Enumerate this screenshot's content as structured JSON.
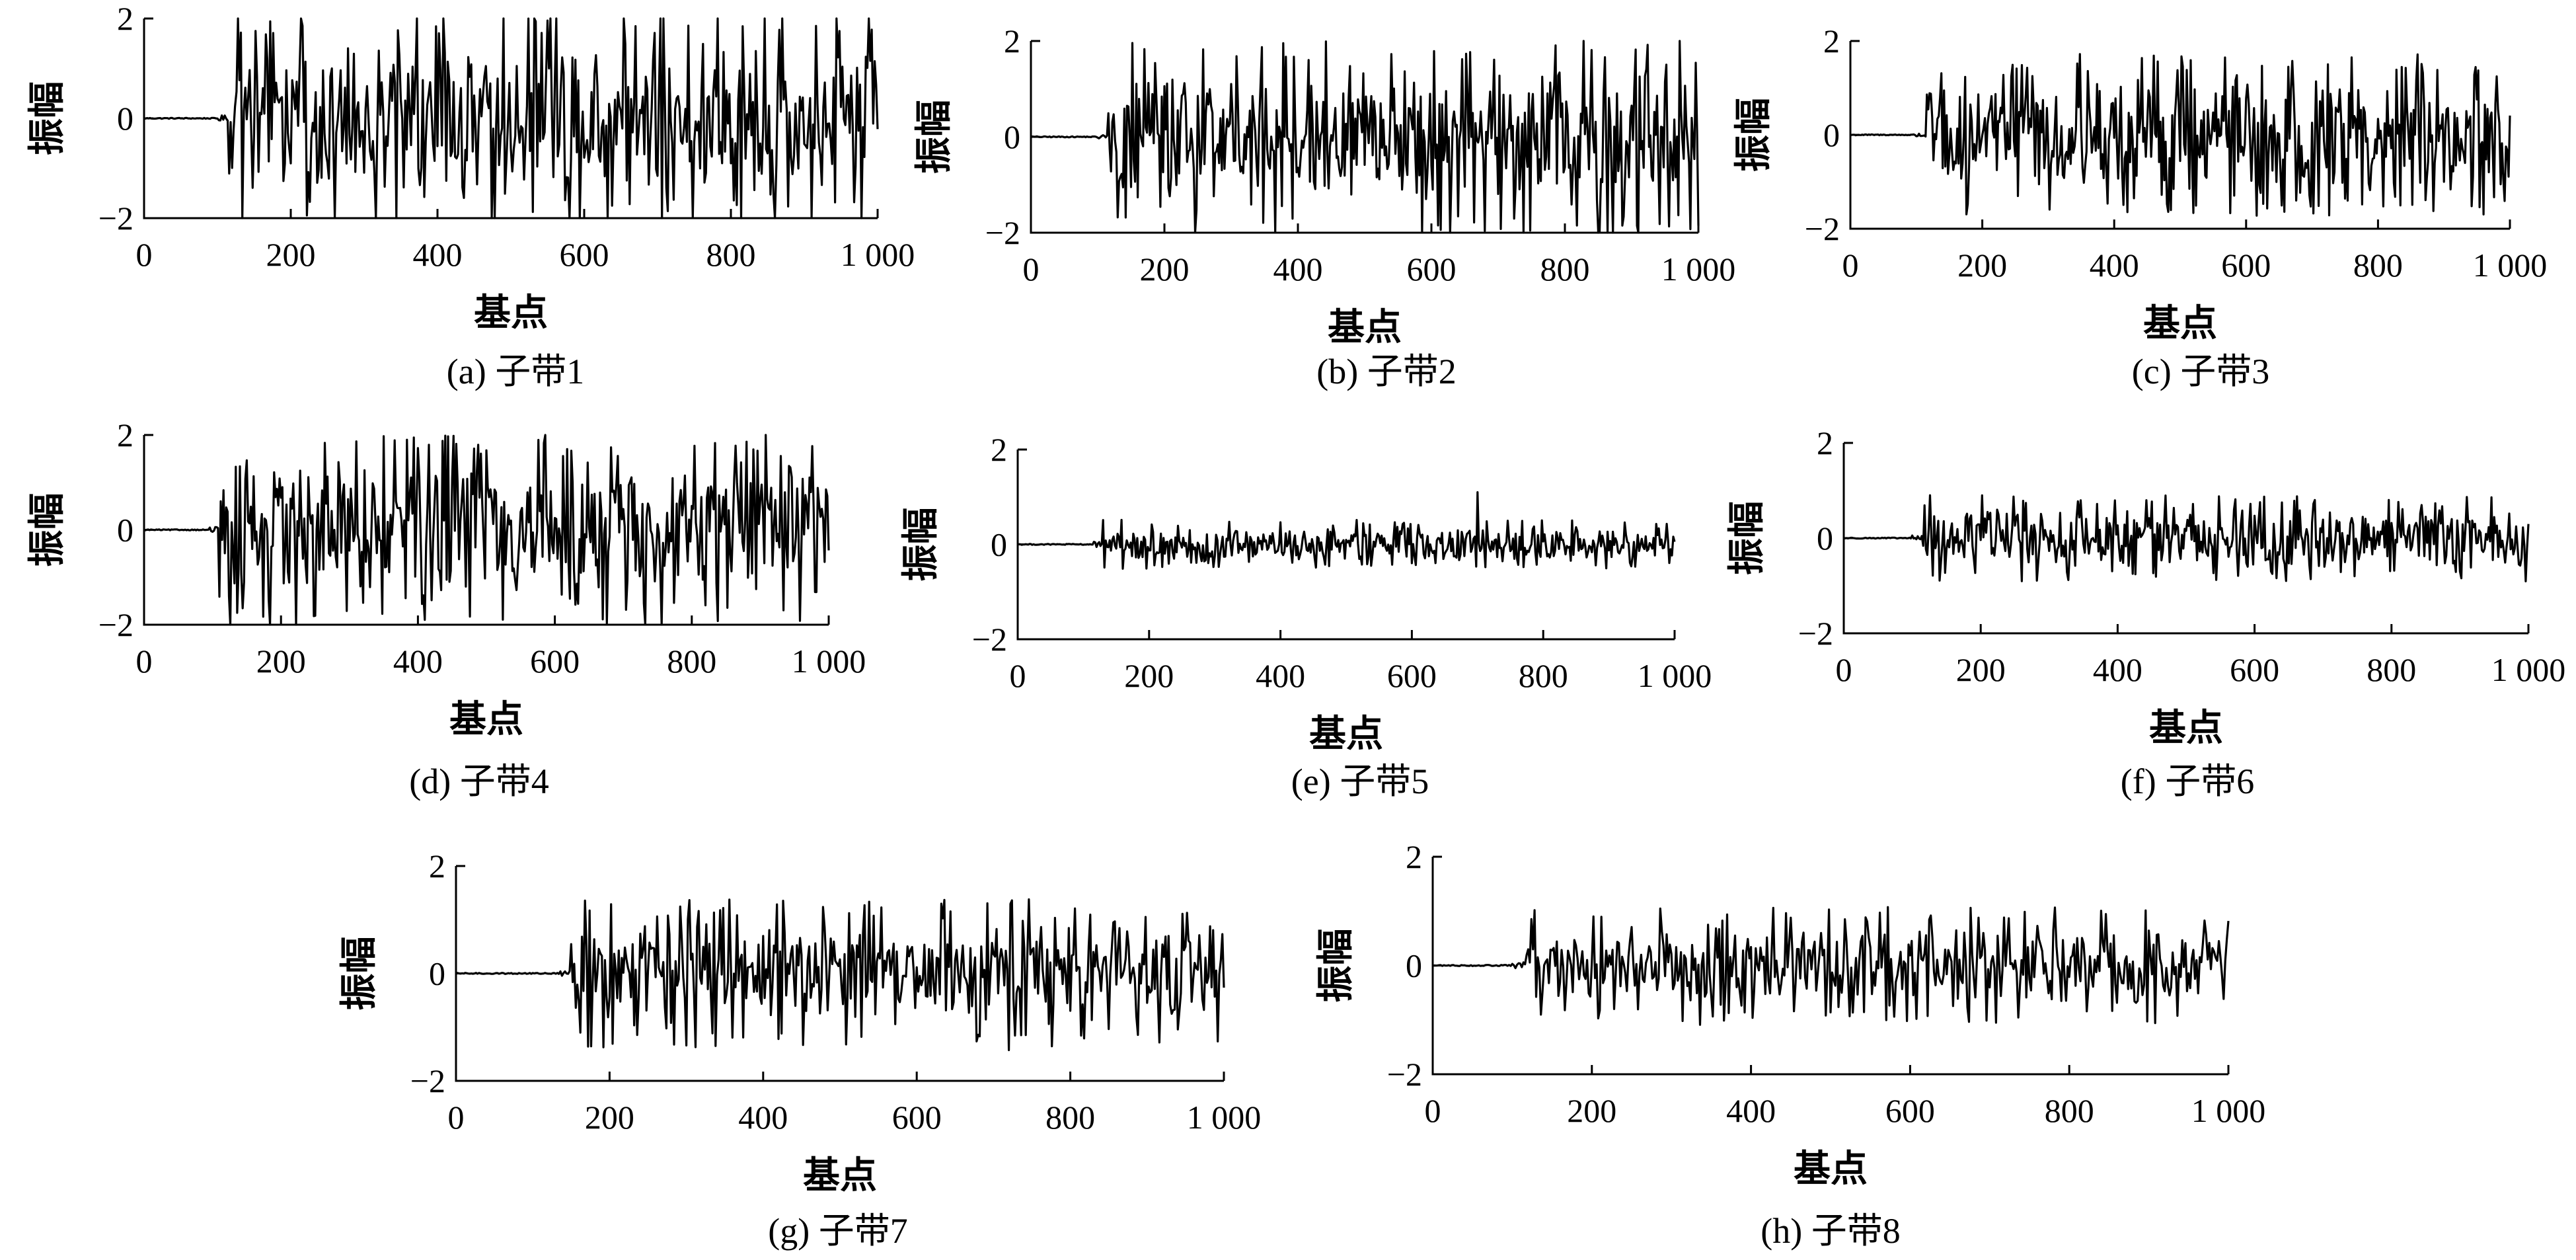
{
  "chart_data": [
    {
      "type": "line",
      "ylabel": "振幅",
      "xlabel": "基点",
      "caption": "(a) 子带1",
      "xlim": [
        0,
        1000
      ],
      "ylim": [
        -2,
        2
      ],
      "xticks": [
        "0",
        "200",
        "400",
        "600",
        "800",
        "1 000"
      ],
      "yticks": [
        "2",
        "0",
        "−2"
      ],
      "series": [
        {
          "x_start": 0,
          "x_end": 1000,
          "onset": 115,
          "amplitude": 2.0,
          "clipped": true,
          "shape": "noise"
        }
      ]
    },
    {
      "type": "line",
      "ylabel": "振幅",
      "xlabel": "基点",
      "caption": "(b) 子带2",
      "xlim": [
        0,
        1000
      ],
      "ylim": [
        -2,
        2
      ],
      "xticks": [
        "0",
        "200",
        "400",
        "600",
        "800",
        "1 000"
      ],
      "yticks": [
        "2",
        "0",
        "−2"
      ],
      "series": [
        {
          "x_start": 0,
          "x_end": 1000,
          "onset": 115,
          "amplitude": 1.8,
          "clipped": true,
          "shape": "noise"
        }
      ]
    },
    {
      "type": "line",
      "ylabel": "振幅",
      "xlabel": "基点",
      "caption": "(c) 子带3",
      "xlim": [
        0,
        1000
      ],
      "ylim": [
        -2,
        2
      ],
      "xticks": [
        "0",
        "200",
        "400",
        "600",
        "800",
        "1 000"
      ],
      "yticks": [
        "2",
        "0",
        "−2"
      ],
      "series": [
        {
          "x_start": 0,
          "x_end": 1000,
          "onset": 115,
          "amplitude": 1.5,
          "clipped": false,
          "shape": "noise"
        }
      ]
    },
    {
      "type": "line",
      "ylabel": "振幅",
      "xlabel": "基点",
      "caption": "(d) 子带4",
      "xlim": [
        0,
        1000
      ],
      "ylim": [
        -2,
        2
      ],
      "xticks": [
        "0",
        "200",
        "400",
        "600",
        "800",
        "1 000"
      ],
      "yticks": [
        "2",
        "0",
        "−2"
      ],
      "series": [
        {
          "x_start": 0,
          "x_end": 1000,
          "onset": 110,
          "amplitude": 1.8,
          "clipped": false,
          "shape": "noise"
        }
      ]
    },
    {
      "type": "line",
      "ylabel": "振幅",
      "xlabel": "基点",
      "caption": "(e) 子带5",
      "xlim": [
        0,
        1000
      ],
      "ylim": [
        -2,
        2
      ],
      "xticks": [
        "0",
        "200",
        "400",
        "600",
        "800",
        "1 000"
      ],
      "yticks": [
        "2",
        "0",
        "−2"
      ],
      "series": [
        {
          "x_start": 0,
          "x_end": 1000,
          "onset": 130,
          "amplitude": 0.45,
          "clipped": false,
          "shape": "noise",
          "peak": {
            "x": 700,
            "y": 1.1
          }
        }
      ]
    },
    {
      "type": "line",
      "ylabel": "振幅",
      "xlabel": "基点",
      "caption": "(f) 子带6",
      "xlim": [
        0,
        1000
      ],
      "ylim": [
        -2,
        2
      ],
      "xticks": [
        "0",
        "200",
        "400",
        "600",
        "800",
        "1 000"
      ],
      "yticks": [
        "2",
        "0",
        "−2"
      ],
      "series": [
        {
          "x_start": 0,
          "x_end": 1000,
          "onset": 115,
          "amplitude": 0.8,
          "clipped": false,
          "shape": "noise"
        }
      ]
    },
    {
      "type": "line",
      "ylabel": "振幅",
      "xlabel": "基点",
      "caption": "(g) 子带7",
      "xlim": [
        0,
        1000
      ],
      "ylim": [
        -2,
        2
      ],
      "xticks": [
        "0",
        "200",
        "400",
        "600",
        "800",
        "1 000"
      ],
      "yticks": [
        "2",
        "0",
        "−2"
      ],
      "series": [
        {
          "x_start": 0,
          "x_end": 1000,
          "onset": 150,
          "amplitude": 1.2,
          "clipped": false,
          "shape": "noise"
        }
      ]
    },
    {
      "type": "line",
      "ylabel": "振幅",
      "xlabel": "基点",
      "caption": "(h) 子带8",
      "xlim": [
        0,
        1000
      ],
      "ylim": [
        -2,
        2
      ],
      "xticks": [
        "0",
        "200",
        "400",
        "600",
        "800",
        "1 000"
      ],
      "yticks": [
        "2",
        "0",
        "−2"
      ],
      "series": [
        {
          "x_start": 0,
          "x_end": 1000,
          "onset": 115,
          "amplitude": 0.95,
          "clipped": false,
          "shape": "noise"
        }
      ]
    }
  ]
}
